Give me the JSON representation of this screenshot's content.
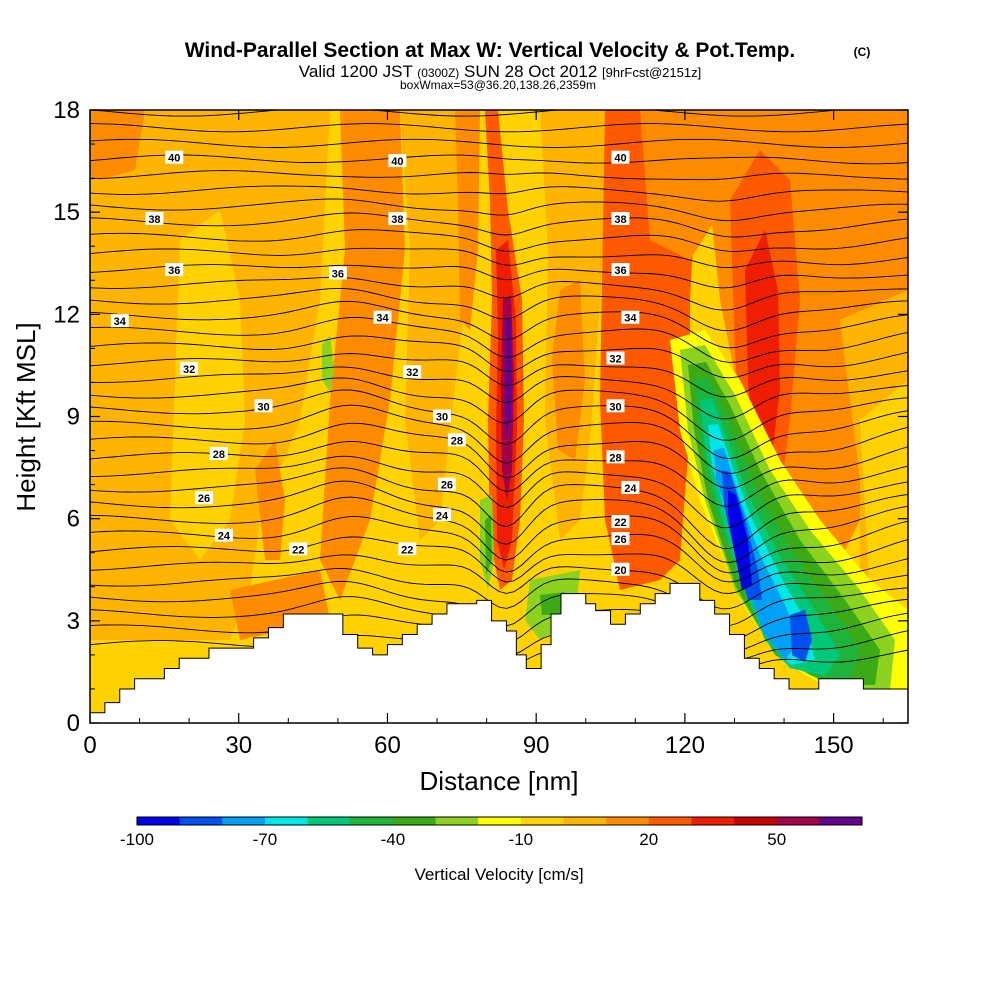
{
  "header": {
    "title": "Wind-Parallel Section at Max W: Vertical Velocity & Pot.Temp.",
    "copyright": "(C)",
    "valid_a": "Valid 1200 JST",
    "valid_zulu": "(0300Z)",
    "valid_b": "SUN 28 Oct 2012",
    "forecast": "[9hrFcst@2151z]",
    "subtitle": "boxWmax=53@36.20,138.26,2359m"
  },
  "chart_data": {
    "type": "heatmap",
    "xlabel": "Distance [nm]",
    "ylabel": "Height [Kft MSL]",
    "xlim": [
      0,
      165
    ],
    "ylim": [
      0,
      18
    ],
    "x_ticks": [
      0,
      30,
      60,
      90,
      120,
      150
    ],
    "y_ticks": [
      0,
      3,
      6,
      9,
      12,
      15,
      18
    ],
    "colorbar": {
      "label": "Vertical Velocity [cm/s]",
      "tick_labels": [
        "-100",
        "-70",
        "-40",
        "-10",
        "20",
        "50"
      ],
      "levels": [
        -100,
        -90,
        -80,
        -70,
        -60,
        -50,
        -40,
        -30,
        -20,
        -10,
        0,
        10,
        20,
        30,
        40,
        50,
        60,
        70
      ],
      "colors": [
        "#0000e6",
        "#0050f0",
        "#00a0f5",
        "#00e6e6",
        "#00c878",
        "#1eb43c",
        "#3caa14",
        "#8cd21e",
        "#ffff00",
        "#ffd200",
        "#ffb400",
        "#ff8c00",
        "#ff5a00",
        "#f01e00",
        "#c80000",
        "#a0004b",
        "#64008c"
      ]
    },
    "vertical_velocity_features": [
      {
        "kind": "updraft-core",
        "x": 84,
        "y_range": [
          3,
          12.5
        ],
        "max_cm_s": 60
      },
      {
        "kind": "updraft",
        "x": 133,
        "y_range": [
          6.5,
          14
        ],
        "max_cm_s": 45
      },
      {
        "kind": "updraft",
        "x": 110,
        "y_range": [
          3.5,
          15
        ],
        "max_cm_s": 30
      },
      {
        "kind": "downdraft",
        "x": 131,
        "y_range": [
          2,
          11
        ],
        "min_cm_s": -100
      },
      {
        "kind": "downdraft",
        "x": 150,
        "y_range": [
          1,
          4
        ],
        "min_cm_s": -70
      }
    ],
    "theta_label_values": [
      "40",
      "38",
      "36",
      "34",
      "32",
      "30",
      "28",
      "26",
      "24",
      "22",
      "20"
    ],
    "contour_labels": [
      {
        "text": "40",
        "x": 17,
        "y": 16.6
      },
      {
        "text": "40",
        "x": 62,
        "y": 16.5
      },
      {
        "text": "40",
        "x": 107,
        "y": 16.6
      },
      {
        "text": "38",
        "x": 13,
        "y": 14.8
      },
      {
        "text": "38",
        "x": 62,
        "y": 14.8
      },
      {
        "text": "38",
        "x": 107,
        "y": 14.8
      },
      {
        "text": "36",
        "x": 17,
        "y": 13.3
      },
      {
        "text": "36",
        "x": 50,
        "y": 13.2
      },
      {
        "text": "36",
        "x": 107,
        "y": 13.3
      },
      {
        "text": "34",
        "x": 6,
        "y": 11.8
      },
      {
        "text": "34",
        "x": 59,
        "y": 11.9
      },
      {
        "text": "34",
        "x": 109,
        "y": 11.9
      },
      {
        "text": "32",
        "x": 20,
        "y": 10.4
      },
      {
        "text": "32",
        "x": 65,
        "y": 10.3
      },
      {
        "text": "32",
        "x": 106,
        "y": 10.7
      },
      {
        "text": "30",
        "x": 35,
        "y": 9.3
      },
      {
        "text": "30",
        "x": 71,
        "y": 9.0
      },
      {
        "text": "30",
        "x": 106,
        "y": 9.3
      },
      {
        "text": "28",
        "x": 26,
        "y": 7.9
      },
      {
        "text": "28",
        "x": 74,
        "y": 8.3
      },
      {
        "text": "28",
        "x": 106,
        "y": 7.8
      },
      {
        "text": "26",
        "x": 23,
        "y": 6.6
      },
      {
        "text": "26",
        "x": 72,
        "y": 7.0
      },
      {
        "text": "26",
        "x": 107,
        "y": 5.4
      },
      {
        "text": "24",
        "x": 27,
        "y": 5.5
      },
      {
        "text": "24",
        "x": 71,
        "y": 6.1
      },
      {
        "text": "24",
        "x": 109,
        "y": 6.9
      },
      {
        "text": "22",
        "x": 42,
        "y": 5.1
      },
      {
        "text": "22",
        "x": 64,
        "y": 5.1
      },
      {
        "text": "22",
        "x": 107,
        "y": 5.9
      },
      {
        "text": "20",
        "x": 107,
        "y": 4.5
      }
    ],
    "terrain_profile": [
      [
        0,
        0.3
      ],
      [
        3,
        0.3
      ],
      [
        3,
        0.6
      ],
      [
        6,
        0.6
      ],
      [
        6,
        1.0
      ],
      [
        9,
        1.0
      ],
      [
        9,
        1.3
      ],
      [
        15,
        1.3
      ],
      [
        15,
        1.6
      ],
      [
        18,
        1.6
      ],
      [
        18,
        1.9
      ],
      [
        24,
        1.9
      ],
      [
        24,
        2.2
      ],
      [
        33,
        2.2
      ],
      [
        33,
        2.5
      ],
      [
        36,
        2.5
      ],
      [
        36,
        2.8
      ],
      [
        39,
        2.8
      ],
      [
        39,
        3.2
      ],
      [
        51,
        3.2
      ],
      [
        51,
        2.6
      ],
      [
        54,
        2.6
      ],
      [
        54,
        2.2
      ],
      [
        57,
        2.2
      ],
      [
        57,
        2.0
      ],
      [
        60,
        2.0
      ],
      [
        60,
        2.3
      ],
      [
        63,
        2.3
      ],
      [
        63,
        2.6
      ],
      [
        66,
        2.6
      ],
      [
        66,
        2.9
      ],
      [
        69,
        2.9
      ],
      [
        69,
        3.2
      ],
      [
        72,
        3.2
      ],
      [
        72,
        3.5
      ],
      [
        78,
        3.5
      ],
      [
        78,
        3.6
      ],
      [
        81,
        3.6
      ],
      [
        81,
        3.0
      ],
      [
        84,
        3.0
      ],
      [
        84,
        2.7
      ],
      [
        86,
        2.7
      ],
      [
        86,
        2.0
      ],
      [
        88,
        2.0
      ],
      [
        88,
        1.6
      ],
      [
        91,
        1.6
      ],
      [
        91,
        2.3
      ],
      [
        93,
        2.3
      ],
      [
        93,
        3.2
      ],
      [
        95,
        3.2
      ],
      [
        95,
        3.8
      ],
      [
        100,
        3.8
      ],
      [
        100,
        3.5
      ],
      [
        102,
        3.5
      ],
      [
        102,
        3.3
      ],
      [
        105,
        3.3
      ],
      [
        105,
        2.9
      ],
      [
        108,
        2.9
      ],
      [
        108,
        3.2
      ],
      [
        111,
        3.2
      ],
      [
        111,
        3.5
      ],
      [
        114,
        3.5
      ],
      [
        114,
        3.8
      ],
      [
        117,
        3.8
      ],
      [
        117,
        4.1
      ],
      [
        123,
        4.1
      ],
      [
        123,
        3.6
      ],
      [
        126,
        3.6
      ],
      [
        126,
        3.2
      ],
      [
        129,
        3.2
      ],
      [
        129,
        2.6
      ],
      [
        132,
        2.6
      ],
      [
        132,
        1.9
      ],
      [
        135,
        1.9
      ],
      [
        135,
        1.6
      ],
      [
        138,
        1.6
      ],
      [
        138,
        1.3
      ],
      [
        141,
        1.3
      ],
      [
        141,
        1.0
      ],
      [
        147,
        1.0
      ],
      [
        147,
        1.3
      ],
      [
        156,
        1.3
      ],
      [
        156,
        1.0
      ],
      [
        165,
        1.0
      ]
    ]
  }
}
